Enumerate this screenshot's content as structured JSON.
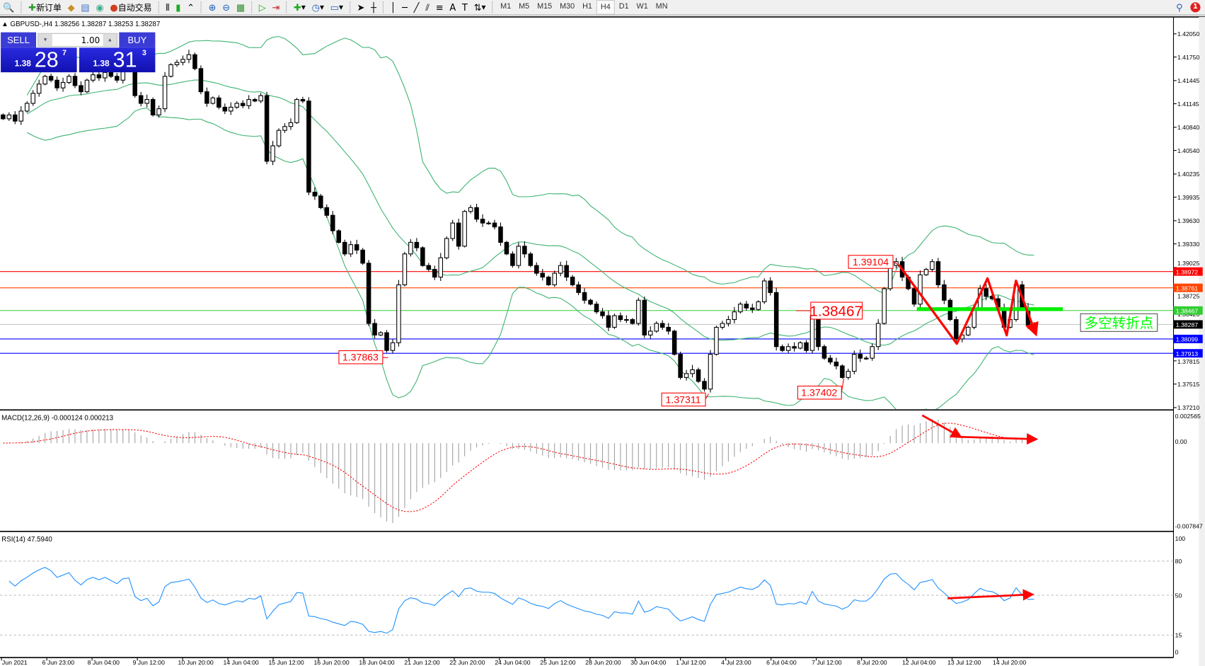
{
  "toolbar": {
    "new_order_label": "新订单",
    "auto_trade_label": "自动交易",
    "timeframes": [
      "M1",
      "M5",
      "M15",
      "M30",
      "H1",
      "H4",
      "D1",
      "W1",
      "MN"
    ],
    "active_timeframe": "H4",
    "notification_count": "1"
  },
  "chart": {
    "header": "GBPUSD-,H4  1.38256 1.38287 1.38253 1.38287"
  },
  "one_click": {
    "sell_label": "SELL",
    "buy_label": "BUY",
    "lot": "1.00",
    "sell_price": {
      "prefix": "1.38",
      "big": "28",
      "sup": "7"
    },
    "buy_price": {
      "prefix": "1.38",
      "big": "31",
      "sup": "3"
    }
  },
  "chart_data": {
    "type": "candlestick",
    "symbol": "GBPUSD-",
    "timeframe": "H4",
    "price_range": [
      1.3721,
      1.4205
    ],
    "closes": [
      1.4095,
      1.41,
      1.4092,
      1.4105,
      1.4115,
      1.4128,
      1.414,
      1.415,
      1.4145,
      1.4135,
      1.4142,
      1.415,
      1.4138,
      1.413,
      1.4145,
      1.4152,
      1.4148,
      1.4155,
      1.415,
      1.4145,
      1.4158,
      1.416,
      1.4125,
      1.4115,
      1.412,
      1.41,
      1.4108,
      1.415,
      1.4165,
      1.4168,
      1.4172,
      1.4178,
      1.416,
      1.413,
      1.4115,
      1.4122,
      1.411,
      1.4105,
      1.411,
      1.4115,
      1.4112,
      1.412,
      1.4118,
      1.4125,
      1.404,
      1.406,
      1.408,
      1.4085,
      1.409,
      1.412,
      1.4118,
      1.4,
      1.3995,
      1.398,
      1.397,
      1.395,
      1.3935,
      1.392,
      1.3932,
      1.3925,
      1.3908,
      1.383,
      1.3815,
      1.3818,
      1.3795,
      1.3805,
      1.388,
      1.392,
      1.3935,
      1.3928,
      1.3905,
      1.39,
      1.389,
      1.3915,
      1.394,
      1.396,
      1.393,
      1.3975,
      1.398,
      1.3965,
      1.396,
      1.396,
      1.3955,
      1.3935,
      1.392,
      1.3905,
      1.393,
      1.392,
      1.3905,
      1.3895,
      1.389,
      1.388,
      1.3895,
      1.3905,
      1.389,
      1.388,
      1.387,
      1.386,
      1.3855,
      1.3845,
      1.384,
      1.3825,
      1.384,
      1.3835,
      1.3835,
      1.383,
      1.386,
      1.3815,
      1.382,
      1.383,
      1.3825,
      1.382,
      1.379,
      1.376,
      1.3765,
      1.377,
      1.3755,
      1.3745,
      1.379,
      1.3825,
      1.383,
      1.3835,
      1.3845,
      1.3855,
      1.385,
      1.3848,
      1.3858,
      1.3885,
      1.387,
      1.38,
      1.3795,
      1.38,
      1.3798,
      1.3805,
      1.3795,
      1.384,
      1.38,
      1.3785,
      1.378,
      1.3775,
      1.376,
      1.3768,
      1.379,
      1.3785,
      1.3785,
      1.38,
      1.383,
      1.3875,
      1.3905,
      1.391,
      1.389,
      1.3875,
      1.3855,
      1.3893,
      1.39,
      1.391,
      1.388,
      1.386,
      1.3835,
      1.381,
      1.3815,
      1.3825,
      1.385,
      1.3875,
      1.3865,
      1.3862,
      1.385,
      1.3825,
      1.3835,
      1.388,
      1.385,
      1.3828,
      1.3829
    ],
    "price_axis_ticks": [
      "1.42050",
      "1.41750",
      "1.41445",
      "1.41145",
      "1.40840",
      "1.40540",
      "1.40235",
      "1.39935",
      "1.39630",
      "1.39330",
      "1.39025",
      "1.38725",
      "1.38420",
      "1.37815",
      "1.37515",
      "1.37210"
    ],
    "horizontal_levels": [
      {
        "price": "1.38972",
        "color": "#ff0000",
        "text_color": "#ffffff"
      },
      {
        "price": "1.38761",
        "color": "#ff4500",
        "text_color": "#ffffff"
      },
      {
        "price": "1.38467",
        "color": "#32cd32",
        "text_color": "#ffffff"
      },
      {
        "price": "1.38287",
        "color": "#c0c0c0",
        "label_bg": "#000000",
        "text_color": "#ffffff"
      },
      {
        "price": "1.38099",
        "color": "#0000ff",
        "text_color": "#ffffff"
      },
      {
        "price": "1.37913",
        "color": "#0000ff",
        "text_color": "#ffffff"
      }
    ],
    "price_labels": [
      "1.39104",
      "1.38467",
      "1.37863",
      "1.37311",
      "1.37402"
    ],
    "annotation_text": "多空转折点",
    "annotation_color": "#00ff00",
    "time_labels": [
      "3 Jun 2021",
      "6 Jun 23:00",
      "8 Jun 04:00",
      "9 Jun 12:00",
      "10 Jun 20:00",
      "14 Jun 04:00",
      "15 Jun 12:00",
      "16 Jun 20:00",
      "18 Jun 04:00",
      "21 Jun 12:00",
      "22 Jun 20:00",
      "24 Jun 04:00",
      "25 Jun 12:00",
      "28 Jun 20:00",
      "30 Jun 04:00",
      "1 Jul 12:00",
      "4 Jul 23:00",
      "6 Jul 04:00",
      "7 Jul 12:00",
      "8 Jul 20:00",
      "12 Jul 04:00",
      "13 Jul 12:00",
      "14 Jul 20:00"
    ],
    "bollinger_color": "#3cb371",
    "macd": {
      "label": "MACD(12,26,9) -0.000124 0.000213",
      "axis_ticks": [
        "0.002565",
        "0.00",
        "-0.007847"
      ],
      "range": [
        -0.007847,
        0.002565
      ],
      "histogram_color": "#a0a0a0",
      "signal_color": "#ff0000"
    },
    "rsi": {
      "label": "RSI(14) 47.5940",
      "axis_ticks": [
        "100",
        "80",
        "50",
        "15",
        "0"
      ],
      "levels": [
        80,
        50,
        15
      ],
      "color": "#1e90ff"
    }
  }
}
